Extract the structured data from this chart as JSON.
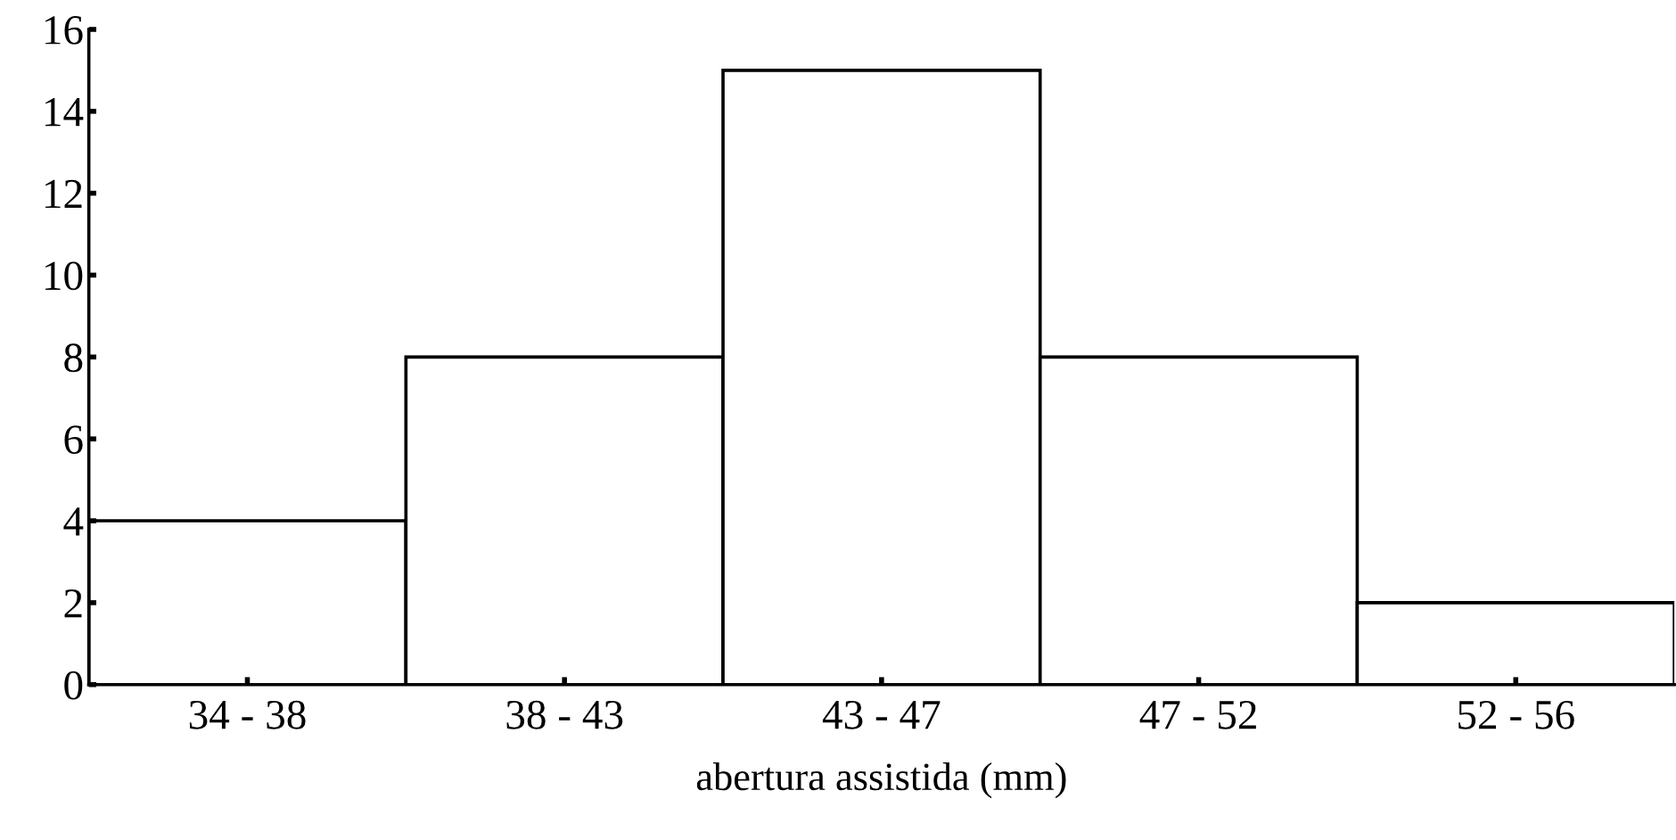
{
  "chart_data": {
    "type": "bar",
    "xlabel": "abertura assistida (mm)",
    "categories": [
      "34 - 38",
      "38 - 43",
      "43 - 47",
      "47 - 52",
      "52 - 56"
    ],
    "values": [
      4,
      8,
      15,
      8,
      2
    ],
    "color": "#ffffff",
    "ylim": [
      0,
      16
    ],
    "yticks": [
      0,
      2,
      4,
      6,
      8,
      10,
      12,
      14,
      16
    ],
    "grid": false,
    "legend": false
  }
}
